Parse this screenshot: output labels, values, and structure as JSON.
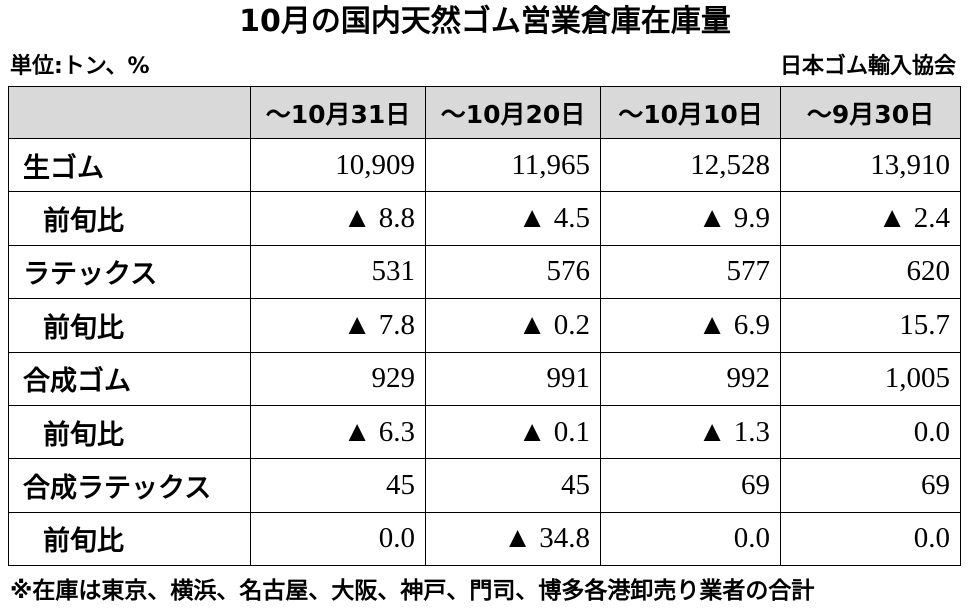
{
  "header": {
    "title": "10月の国内天然ゴム営業倉庫在庫量",
    "unit": "単位:トン、%",
    "source": "日本ゴム輸入協会"
  },
  "table": {
    "columns": [
      "～10月31日",
      "～10月20日",
      "～10月10日",
      "～9月30日"
    ],
    "rows": [
      [
        "生ゴム",
        "10,909",
        "11,965",
        "12,528",
        "13,910"
      ],
      [
        "前旬比",
        "▲ 8.8",
        "▲ 4.5",
        "▲ 9.9",
        "▲ 2.4"
      ],
      [
        "ラテックス",
        "531",
        "576",
        "577",
        "620"
      ],
      [
        "前旬比",
        "▲ 7.8",
        "▲ 0.2",
        "▲ 6.9",
        "15.7"
      ],
      [
        "合成ゴム",
        "929",
        "991",
        "992",
        "1,005"
      ],
      [
        "前旬比",
        "▲ 6.3",
        "▲ 0.1",
        "▲ 1.3",
        "0.0"
      ],
      [
        "合成ラテックス",
        "45",
        "45",
        "69",
        "69"
      ],
      [
        "前旬比",
        "0.0",
        "▲ 34.8",
        "0.0",
        "0.0"
      ]
    ]
  },
  "footnote": "※在庫は東京、横浜、名古屋、大阪、神戸、門司、博多各港卸売り業者の合計"
}
